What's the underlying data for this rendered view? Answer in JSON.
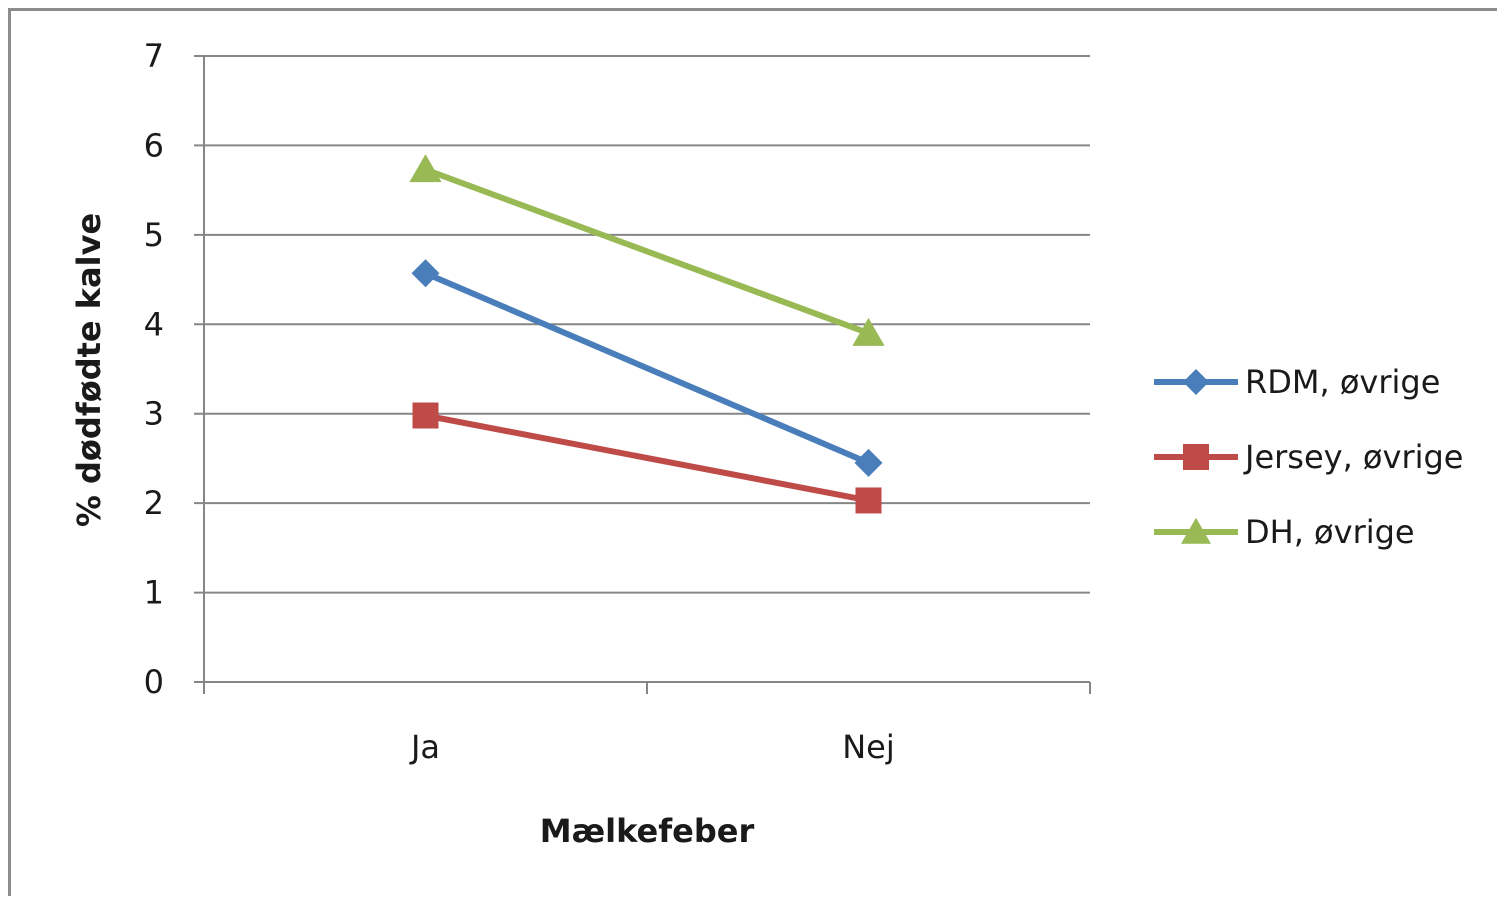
{
  "chart_data": {
    "type": "line",
    "categories": [
      "Ja",
      "Nej"
    ],
    "series": [
      {
        "name": "RDM, øvrige",
        "values": [
          4.57,
          2.45
        ],
        "color": "#4a7ebb",
        "marker": "diamond"
      },
      {
        "name": "Jersey, øvrige",
        "values": [
          2.98,
          2.03
        ],
        "color": "#be4b48",
        "marker": "square"
      },
      {
        "name": "DH, øvrige",
        "values": [
          5.73,
          3.9
        ],
        "color": "#98b954",
        "marker": "triangle"
      }
    ],
    "title": "",
    "xlabel": "Mælkefeber",
    "ylabel": "% dødfødte kalve",
    "ylim": [
      0,
      7
    ],
    "yticks": [
      "0",
      "1",
      "2",
      "3",
      "4",
      "5",
      "6",
      "7"
    ],
    "grid": "horizontal",
    "legend_position": "right",
    "gridline_color": "#868686"
  }
}
